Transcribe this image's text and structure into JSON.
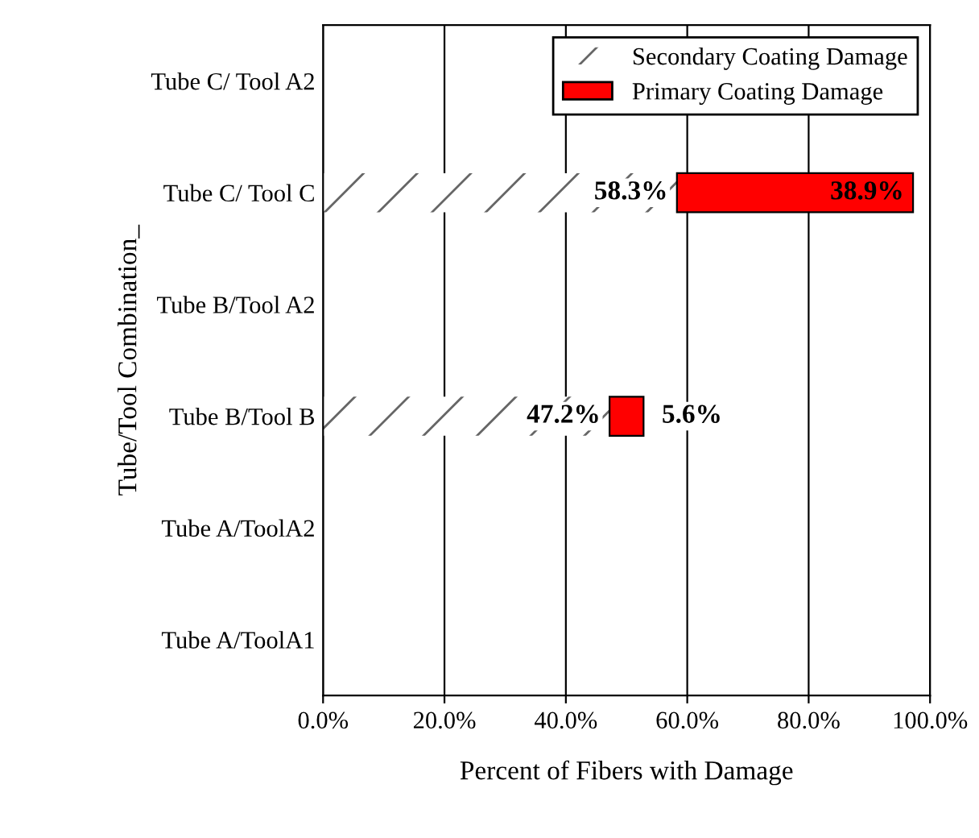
{
  "chart_data": {
    "type": "bar",
    "orientation": "horizontal",
    "stacked": true,
    "categories": [
      "Tube C/ Tool A2",
      "Tube C/ Tool C",
      "Tube B/Tool A2",
      "Tube B/Tool B",
      "Tube A/ToolA2",
      "Tube A/ToolA1"
    ],
    "series": [
      {
        "name": "Secondary Coating Damage",
        "color": "#ffffff",
        "values": [
          0,
          58.3,
          0,
          47.2,
          0,
          0
        ],
        "value_labels": [
          null,
          "58.3%",
          null,
          "47.2%",
          null,
          null
        ]
      },
      {
        "name": "Primary Coating Damage",
        "color": "#ff0000",
        "values": [
          0,
          38.9,
          0,
          5.6,
          0,
          0
        ],
        "value_labels": [
          null,
          "38.9%",
          null,
          "5.6%",
          null,
          null
        ]
      }
    ],
    "xlim": [
      0,
      100
    ],
    "xticks": [
      {
        "value": 0,
        "label": "0.0%"
      },
      {
        "value": 20,
        "label": "20.0%"
      },
      {
        "value": 40,
        "label": "40.0%"
      },
      {
        "value": 60,
        "label": "60.0%"
      },
      {
        "value": 80,
        "label": "80.0%"
      },
      {
        "value": 100,
        "label": "100.0%"
      }
    ],
    "xlabel": "Percent of Fibers with Damage",
    "ylabel": "Tube/Tool Combination_",
    "grid": "x",
    "legend": "top right"
  }
}
